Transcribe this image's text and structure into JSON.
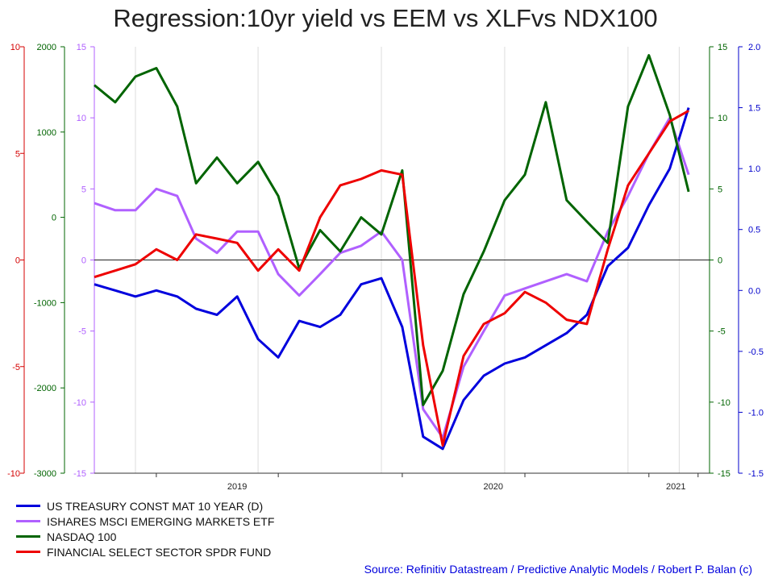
{
  "chart_data": {
    "type": "line",
    "title": "Regression:10yr yield vs EEM vs XLFvs NDX100",
    "source": "Source: Refinitiv Datastream / Predictive Analytic Models / Robert P. Balan  (c)",
    "x_axis": {
      "tick_labels": [
        "2019",
        "2020",
        "2021"
      ],
      "range": [
        "2018-10",
        "2021-04"
      ]
    },
    "axes": [
      {
        "id": "red_left",
        "side": "left",
        "color": "#d40000",
        "range": [
          -10,
          10
        ],
        "ticks": [
          "10",
          "5",
          "0",
          "-5",
          "-10"
        ],
        "tick_values": [
          10,
          5,
          0,
          -5,
          -10
        ]
      },
      {
        "id": "green_left",
        "side": "left",
        "color": "#006400",
        "range": [
          -3000,
          2000
        ],
        "ticks": [
          "2000",
          "1000",
          "0",
          "-1000",
          "-2000",
          "-3000"
        ],
        "tick_values": [
          2000,
          1000,
          0,
          -1000,
          -2000,
          -3000
        ]
      },
      {
        "id": "purple_left",
        "side": "left",
        "color": "#b060ff",
        "range": [
          -15,
          15
        ],
        "ticks": [
          "15",
          "10",
          "5",
          "0",
          "-5",
          "-10",
          "-15"
        ],
        "tick_values": [
          15,
          10,
          5,
          0,
          -5,
          -10,
          -15
        ]
      },
      {
        "id": "green_right",
        "side": "right",
        "color": "#006400",
        "range": [
          -15,
          15
        ],
        "ticks": [
          "15",
          "10",
          "5",
          "0",
          "-5",
          "-10",
          "-15"
        ],
        "tick_values": [
          15,
          10,
          5,
          0,
          -5,
          -10,
          -15
        ]
      },
      {
        "id": "blue_right",
        "side": "right",
        "color": "#0000cc",
        "range": [
          -1.5,
          2.0
        ],
        "ticks": [
          "2.0",
          "1.5",
          "1.0",
          "0.5",
          "0.0",
          "-0.5",
          "-1.0",
          "-1.5"
        ],
        "tick_values": [
          2.0,
          1.5,
          1.0,
          0.5,
          0.0,
          -0.5,
          -1.0,
          -1.5
        ]
      }
    ],
    "zero_line": true,
    "grid": "vertical",
    "legend_position": "bottom-left",
    "series": [
      {
        "name": "US TREASURY CONST MAT 10 YEAR (D)",
        "color": "#0000dd",
        "axis": "blue_right",
        "x": [
          "2018-10-01",
          "2018-11-01",
          "2018-12-01",
          "2019-01-01",
          "2019-02-01",
          "2019-03-01",
          "2019-04-01",
          "2019-05-01",
          "2019-06-01",
          "2019-07-01",
          "2019-08-01",
          "2019-09-01",
          "2019-10-01",
          "2019-11-01",
          "2019-12-01",
          "2020-01-01",
          "2020-02-01",
          "2020-03-01",
          "2020-04-01",
          "2020-05-01",
          "2020-06-01",
          "2020-07-01",
          "2020-08-01",
          "2020-09-01",
          "2020-10-01",
          "2020-11-01",
          "2020-12-01",
          "2021-01-01",
          "2021-02-01",
          "2021-03-01"
        ],
        "y": [
          0.05,
          0.0,
          -0.05,
          0.0,
          -0.05,
          -0.15,
          -0.2,
          -0.05,
          -0.4,
          -0.55,
          -0.25,
          -0.3,
          -0.2,
          0.05,
          0.1,
          -0.3,
          -1.2,
          -1.3,
          -0.9,
          -0.7,
          -0.6,
          -0.55,
          -0.45,
          -0.35,
          -0.2,
          0.2,
          0.35,
          0.7,
          1.0,
          1.5
        ]
      },
      {
        "name": "ISHARES MSCI EMERGING MARKETS ETF",
        "color": "#b060ff",
        "axis": "purple_left",
        "x": [
          "2018-10-01",
          "2018-11-01",
          "2018-12-01",
          "2019-01-01",
          "2019-02-01",
          "2019-03-01",
          "2019-04-01",
          "2019-05-01",
          "2019-06-01",
          "2019-07-01",
          "2019-08-01",
          "2019-09-01",
          "2019-10-01",
          "2019-11-01",
          "2019-12-01",
          "2020-01-01",
          "2020-02-01",
          "2020-03-01",
          "2020-04-01",
          "2020-05-01",
          "2020-06-01",
          "2020-07-01",
          "2020-08-01",
          "2020-09-01",
          "2020-10-01",
          "2020-11-01",
          "2020-12-01",
          "2021-01-01",
          "2021-02-01",
          "2021-03-01"
        ],
        "y": [
          4.0,
          3.5,
          3.5,
          5.0,
          4.5,
          1.5,
          0.5,
          2.0,
          2.0,
          -1.0,
          -2.5,
          -1.0,
          0.5,
          1.0,
          2.0,
          0.0,
          -10.5,
          -12.5,
          -7.5,
          -5.0,
          -2.5,
          -2.0,
          -1.5,
          -1.0,
          -1.5,
          2.0,
          4.5,
          7.5,
          10.0,
          6.0
        ]
      },
      {
        "name": "NASDAQ 100",
        "color": "#006400",
        "axis": "green_left",
        "x": [
          "2018-10-01",
          "2018-11-01",
          "2018-12-01",
          "2019-01-01",
          "2019-02-01",
          "2019-03-01",
          "2019-04-01",
          "2019-05-01",
          "2019-06-01",
          "2019-07-01",
          "2019-08-01",
          "2019-09-01",
          "2019-10-01",
          "2019-11-01",
          "2019-12-01",
          "2020-01-01",
          "2020-02-01",
          "2020-03-01",
          "2020-04-01",
          "2020-05-01",
          "2020-06-01",
          "2020-07-01",
          "2020-08-01",
          "2020-09-01",
          "2020-10-01",
          "2020-11-01",
          "2020-12-01",
          "2021-01-01",
          "2021-02-01",
          "2021-03-01"
        ],
        "y": [
          1550,
          1350,
          1650,
          1750,
          1300,
          400,
          700,
          400,
          650,
          250,
          -600,
          -150,
          -400,
          0,
          -200,
          550,
          -2200,
          -1800,
          -900,
          -400,
          200,
          500,
          1350,
          200,
          -50,
          -300,
          1300,
          1900,
          1200,
          300
        ]
      },
      {
        "name": "FINANCIAL SELECT SECTOR SPDR FUND",
        "color": "#ee0000",
        "axis": "red_left",
        "x": [
          "2018-10-01",
          "2018-11-01",
          "2018-12-01",
          "2019-01-01",
          "2019-02-01",
          "2019-03-01",
          "2019-04-01",
          "2019-05-01",
          "2019-06-01",
          "2019-07-01",
          "2019-08-01",
          "2019-09-01",
          "2019-10-01",
          "2019-11-01",
          "2019-12-01",
          "2020-01-01",
          "2020-02-01",
          "2020-03-01",
          "2020-04-01",
          "2020-05-01",
          "2020-06-01",
          "2020-07-01",
          "2020-08-01",
          "2020-09-01",
          "2020-10-01",
          "2020-11-01",
          "2020-12-01",
          "2021-01-01",
          "2021-02-01",
          "2021-03-01"
        ],
        "y": [
          -0.8,
          -0.5,
          -0.2,
          0.5,
          0.0,
          1.2,
          1.0,
          0.8,
          -0.5,
          0.5,
          -0.5,
          2.0,
          3.5,
          3.8,
          4.2,
          4.0,
          -4.0,
          -8.7,
          -4.5,
          -3.0,
          -2.5,
          -1.5,
          -2.0,
          -2.8,
          -3.0,
          0.5,
          3.5,
          5.0,
          6.5,
          7.0
        ]
      }
    ]
  }
}
